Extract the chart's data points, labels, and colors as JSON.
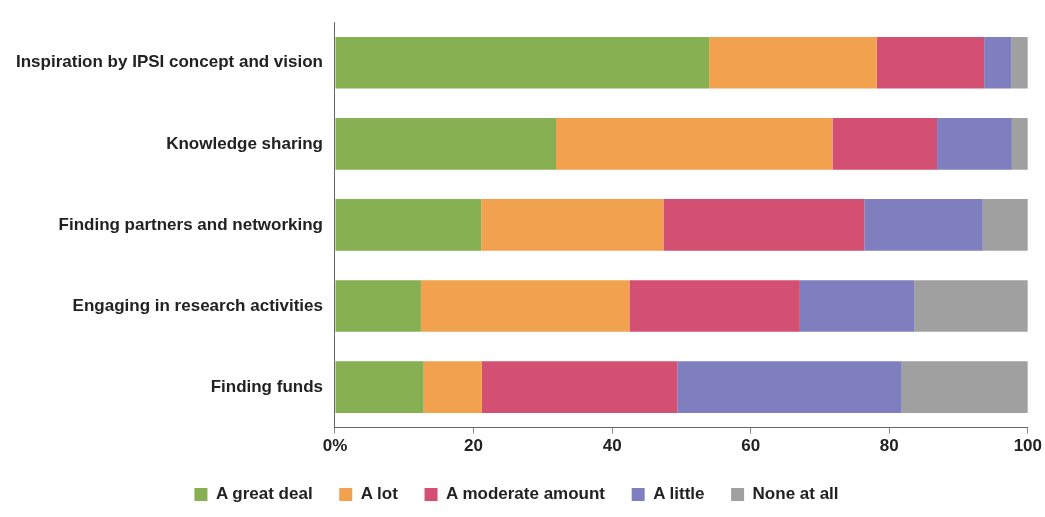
{
  "chart_data": {
    "type": "bar",
    "orientation": "horizontal",
    "stacked": true,
    "categories": [
      "Inspiration by IPSI concept and vision",
      "Knowledge sharing",
      "Finding partners and networking",
      "Engaging in research activities",
      "Finding funds"
    ],
    "series": [
      {
        "name": "A great deal",
        "color": "#86b051",
        "values": [
          54.0,
          31.9,
          21.1,
          12.4,
          12.8
        ]
      },
      {
        "name": "A lot",
        "color": "#f2a14f",
        "values": [
          24.2,
          39.9,
          26.3,
          30.1,
          8.4
        ]
      },
      {
        "name": "A moderate amount",
        "color": "#d35073",
        "values": [
          15.5,
          15.1,
          29.0,
          24.6,
          28.2
        ]
      },
      {
        "name": "A little",
        "color": "#7f7fbf",
        "values": [
          3.9,
          10.8,
          17.1,
          16.5,
          32.4
        ]
      },
      {
        "name": "None at all",
        "color": "#a0a0a0",
        "values": [
          2.4,
          2.3,
          6.5,
          16.4,
          18.2
        ]
      }
    ],
    "xlim": [
      0,
      100
    ],
    "xticks": [
      {
        "value": 0,
        "label": "0%"
      },
      20,
      40,
      60,
      80,
      100
    ],
    "grid": false,
    "legend": "bottom"
  }
}
